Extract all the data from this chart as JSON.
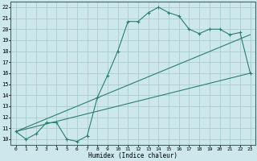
{
  "xlabel": "Humidex (Indice chaleur)",
  "background_color": "#cce8ec",
  "grid_color": "#aacccc",
  "line_color": "#2e7d6e",
  "xlim": [
    -0.5,
    23.5
  ],
  "ylim": [
    9.5,
    22.5
  ],
  "xticks": [
    0,
    1,
    2,
    3,
    4,
    5,
    6,
    7,
    8,
    9,
    10,
    11,
    12,
    13,
    14,
    15,
    16,
    17,
    18,
    19,
    20,
    21,
    22,
    23
  ],
  "yticks": [
    10,
    11,
    12,
    13,
    14,
    15,
    16,
    17,
    18,
    19,
    20,
    21,
    22
  ],
  "curve1_x": [
    0,
    1,
    2,
    3,
    4,
    5,
    6,
    7,
    8,
    9,
    10,
    11,
    12,
    13,
    14,
    15,
    16,
    17,
    18,
    19,
    20,
    21,
    22,
    23
  ],
  "curve1_y": [
    10.7,
    10.0,
    10.5,
    11.5,
    11.5,
    10.0,
    9.8,
    10.3,
    13.8,
    15.8,
    18.0,
    20.7,
    20.7,
    21.5,
    22.0,
    21.5,
    21.2,
    20.0,
    19.6,
    20.0,
    20.0,
    19.5,
    19.7,
    16.0
  ],
  "curve2_x": [
    0,
    23
  ],
  "curve2_y": [
    10.7,
    16.0
  ],
  "curve3_x": [
    0,
    23
  ],
  "curve3_y": [
    10.7,
    19.5
  ],
  "marker": "+"
}
